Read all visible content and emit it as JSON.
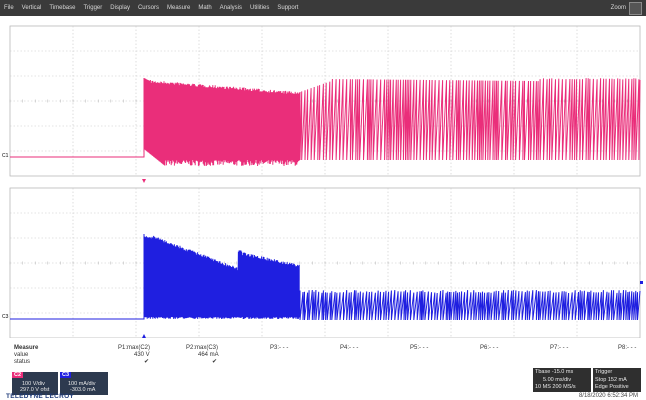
{
  "menu": {
    "items": [
      "File",
      "Vertical",
      "Timebase",
      "Trigger",
      "Display",
      "Cursors",
      "Measure",
      "Math",
      "Analysis",
      "Utilities",
      "Support"
    ],
    "zoom_label": "Zoom"
  },
  "waveforms": {
    "trace_colors": {
      "c1": "#ea2e7a",
      "c3": "#1f1fe0"
    },
    "c1_marker": "C1",
    "c3_marker": "C3"
  },
  "measure": {
    "header_label": "Measure",
    "row_labels": [
      "value",
      "status"
    ],
    "params": [
      {
        "name": "P1:max(C2)",
        "value": "430 V",
        "status": "✔"
      },
      {
        "name": "P2:max(C3)",
        "value": "464 mA",
        "status": "✔"
      },
      {
        "name": "P3:- - -",
        "value": "",
        "status": ""
      },
      {
        "name": "P4:- - -",
        "value": "",
        "status": ""
      },
      {
        "name": "P5:- - -",
        "value": "",
        "status": ""
      },
      {
        "name": "P6:- - -",
        "value": "",
        "status": ""
      },
      {
        "name": "P7:- - -",
        "value": "",
        "status": ""
      },
      {
        "name": "P8:- - -",
        "value": "",
        "status": ""
      }
    ]
  },
  "channels": [
    {
      "tag": "C2",
      "tag_color": "#ea2e7a",
      "lines": [
        "100 V/div",
        "297.0 V ofst"
      ]
    },
    {
      "tag": "C3",
      "tag_color": "#1f1fe0",
      "lines": [
        "100 mA/div",
        "-303.0 mA"
      ]
    }
  ],
  "timebase": {
    "lines": [
      "Tbase -15.0 ms",
      "5.00 ms/div",
      "10 MS  200 MS/s"
    ],
    "trigger_lines": [
      "Trigger",
      "Stop   152 mA",
      "Edge  Positive"
    ]
  },
  "brand": "TELEDYNE LECROY",
  "timestamp": "8/18/2020 6:52:34 PM"
}
